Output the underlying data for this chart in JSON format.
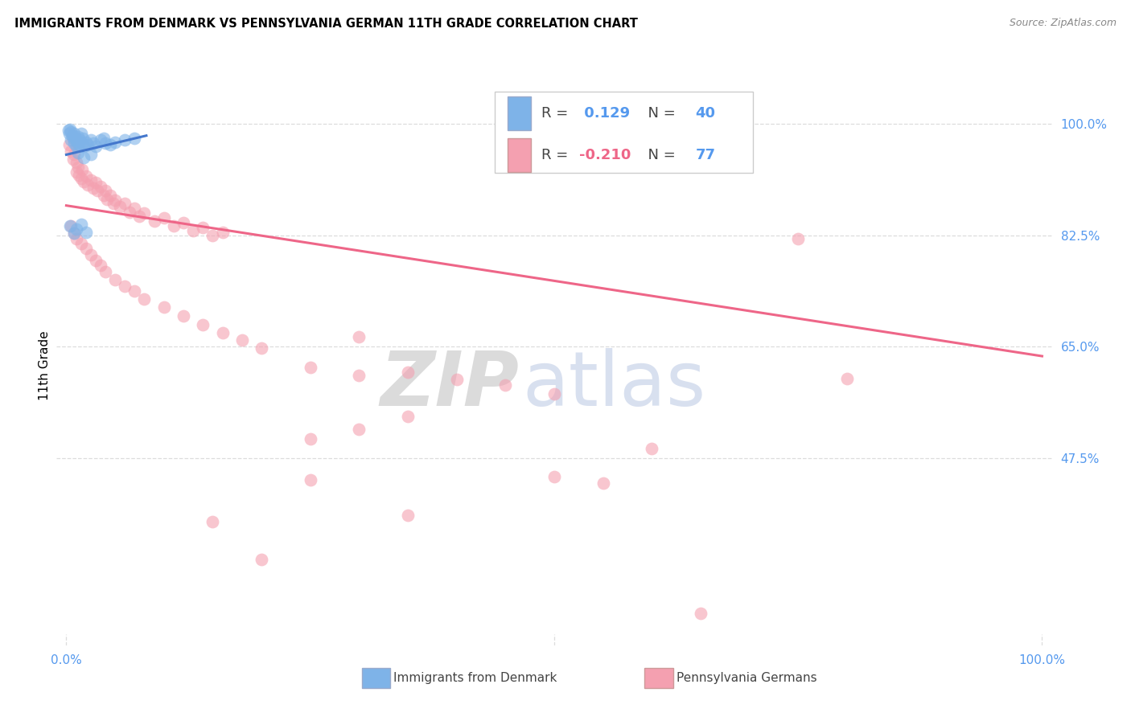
{
  "title": "IMMIGRANTS FROM DENMARK VS PENNSYLVANIA GERMAN 11TH GRADE CORRELATION CHART",
  "source": "Source: ZipAtlas.com",
  "ylabel": "11th Grade",
  "ytick_labels": [
    "100.0%",
    "82.5%",
    "65.0%",
    "47.5%"
  ],
  "ytick_values": [
    1.0,
    0.825,
    0.65,
    0.475
  ],
  "xtick_labels": [
    "0.0%",
    "100.0%"
  ],
  "xtick_values": [
    0.0,
    1.0
  ],
  "legend_label1": "Immigrants from Denmark",
  "legend_label2": "Pennsylvania Germans",
  "R1": "0.129",
  "N1": "40",
  "R2": "-0.210",
  "N2": "77",
  "blue_color": "#7EB3E8",
  "pink_color": "#F4A0B0",
  "blue_line_color": "#4477CC",
  "pink_line_color": "#EE6688",
  "blue_scatter": [
    [
      0.002,
      0.99
    ],
    [
      0.003,
      0.985
    ],
    [
      0.004,
      0.992
    ],
    [
      0.005,
      0.988
    ],
    [
      0.005,
      0.975
    ],
    [
      0.006,
      0.982
    ],
    [
      0.007,
      0.978
    ],
    [
      0.008,
      0.985
    ],
    [
      0.008,
      0.97
    ],
    [
      0.009,
      0.98
    ],
    [
      0.01,
      0.975
    ],
    [
      0.01,
      0.965
    ],
    [
      0.011,
      0.972
    ],
    [
      0.012,
      0.98
    ],
    [
      0.013,
      0.968
    ],
    [
      0.014,
      0.975
    ],
    [
      0.015,
      0.985
    ],
    [
      0.016,
      0.97
    ],
    [
      0.017,
      0.978
    ],
    [
      0.018,
      0.965
    ],
    [
      0.02,
      0.972
    ],
    [
      0.022,
      0.968
    ],
    [
      0.025,
      0.975
    ],
    [
      0.028,
      0.97
    ],
    [
      0.03,
      0.965
    ],
    [
      0.035,
      0.975
    ],
    [
      0.038,
      0.978
    ],
    [
      0.04,
      0.97
    ],
    [
      0.045,
      0.968
    ],
    [
      0.05,
      0.972
    ],
    [
      0.06,
      0.975
    ],
    [
      0.07,
      0.978
    ],
    [
      0.012,
      0.955
    ],
    [
      0.018,
      0.948
    ],
    [
      0.025,
      0.952
    ],
    [
      0.004,
      0.84
    ],
    [
      0.008,
      0.828
    ],
    [
      0.01,
      0.835
    ],
    [
      0.015,
      0.842
    ],
    [
      0.02,
      0.83
    ]
  ],
  "pink_scatter": [
    [
      0.003,
      0.968
    ],
    [
      0.005,
      0.958
    ],
    [
      0.007,
      0.945
    ],
    [
      0.008,
      0.952
    ],
    [
      0.01,
      0.94
    ],
    [
      0.01,
      0.925
    ],
    [
      0.012,
      0.932
    ],
    [
      0.013,
      0.92
    ],
    [
      0.015,
      0.915
    ],
    [
      0.016,
      0.928
    ],
    [
      0.018,
      0.91
    ],
    [
      0.02,
      0.918
    ],
    [
      0.022,
      0.905
    ],
    [
      0.025,
      0.912
    ],
    [
      0.028,
      0.9
    ],
    [
      0.03,
      0.908
    ],
    [
      0.032,
      0.895
    ],
    [
      0.035,
      0.902
    ],
    [
      0.038,
      0.888
    ],
    [
      0.04,
      0.895
    ],
    [
      0.042,
      0.882
    ],
    [
      0.045,
      0.888
    ],
    [
      0.048,
      0.875
    ],
    [
      0.05,
      0.88
    ],
    [
      0.055,
      0.87
    ],
    [
      0.06,
      0.875
    ],
    [
      0.065,
      0.862
    ],
    [
      0.07,
      0.868
    ],
    [
      0.075,
      0.855
    ],
    [
      0.08,
      0.86
    ],
    [
      0.09,
      0.848
    ],
    [
      0.1,
      0.852
    ],
    [
      0.11,
      0.84
    ],
    [
      0.12,
      0.845
    ],
    [
      0.13,
      0.832
    ],
    [
      0.14,
      0.838
    ],
    [
      0.15,
      0.825
    ],
    [
      0.16,
      0.83
    ],
    [
      0.005,
      0.84
    ],
    [
      0.008,
      0.828
    ],
    [
      0.01,
      0.82
    ],
    [
      0.015,
      0.812
    ],
    [
      0.02,
      0.805
    ],
    [
      0.025,
      0.795
    ],
    [
      0.03,
      0.785
    ],
    [
      0.035,
      0.778
    ],
    [
      0.04,
      0.768
    ],
    [
      0.05,
      0.755
    ],
    [
      0.06,
      0.745
    ],
    [
      0.07,
      0.738
    ],
    [
      0.08,
      0.725
    ],
    [
      0.1,
      0.712
    ],
    [
      0.12,
      0.698
    ],
    [
      0.14,
      0.685
    ],
    [
      0.16,
      0.672
    ],
    [
      0.18,
      0.66
    ],
    [
      0.2,
      0.648
    ],
    [
      0.25,
      0.618
    ],
    [
      0.3,
      0.605
    ],
    [
      0.35,
      0.61
    ],
    [
      0.4,
      0.598
    ],
    [
      0.5,
      0.575
    ],
    [
      0.5,
      0.445
    ],
    [
      0.55,
      0.435
    ],
    [
      0.3,
      0.52
    ],
    [
      0.25,
      0.44
    ],
    [
      0.35,
      0.385
    ],
    [
      0.2,
      0.315
    ],
    [
      0.25,
      0.505
    ],
    [
      0.6,
      0.49
    ],
    [
      0.75,
      0.82
    ],
    [
      0.8,
      0.6
    ],
    [
      0.65,
      0.23
    ],
    [
      0.15,
      0.375
    ],
    [
      0.35,
      0.54
    ],
    [
      0.45,
      0.59
    ],
    [
      0.3,
      0.665
    ]
  ],
  "blue_trend_x": [
    0.0,
    0.082
  ],
  "blue_trend_y": [
    0.952,
    0.982
  ],
  "pink_trend_x": [
    0.0,
    1.0
  ],
  "pink_trend_y": [
    0.872,
    0.635
  ],
  "xlim": [
    -0.01,
    1.01
  ],
  "ylim": [
    0.18,
    1.06
  ],
  "watermark_zip_color": "#C8C8C8",
  "watermark_atlas_color": "#AABBDD",
  "background_color": "#ffffff",
  "grid_color": "#DDDDDD",
  "tick_color": "#5599EE"
}
